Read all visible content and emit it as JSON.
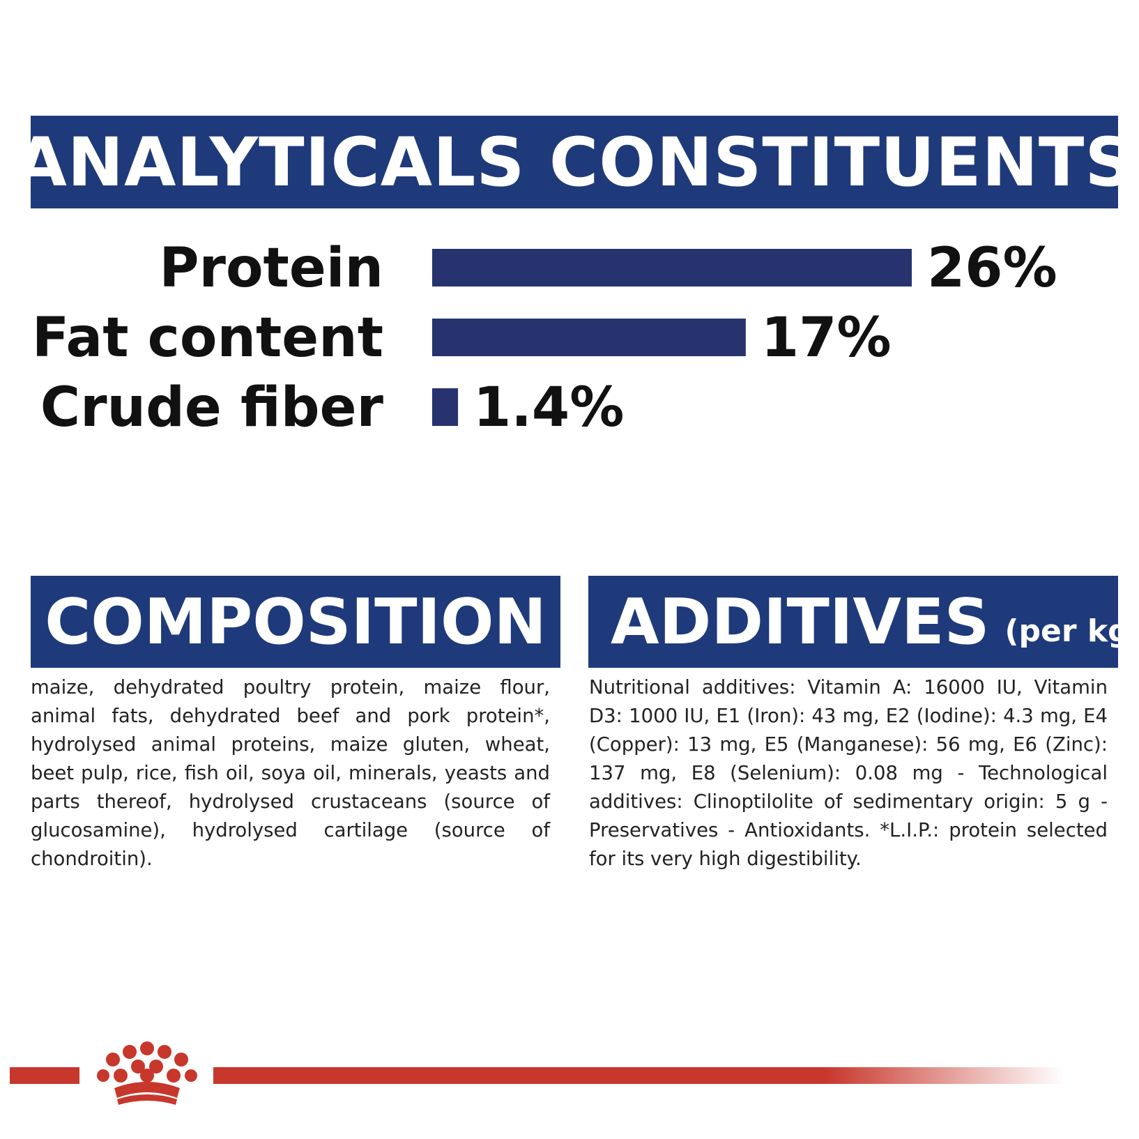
{
  "headers": {
    "analytical": "ANALYTICALS CONSTITUENTS",
    "composition": "COMPOSITION",
    "additives": "ADDITIVES",
    "additives_suffix": "(per kg)"
  },
  "chart_data": {
    "type": "bar",
    "orientation": "horizontal",
    "categories": [
      "Protein",
      "Fat content",
      "Crude fiber"
    ],
    "values": [
      26,
      17,
      1.4
    ],
    "value_labels": [
      "26%",
      "17%",
      "1.4%"
    ],
    "unit": "%",
    "xlim": [
      0,
      26
    ],
    "grid": false,
    "bar_color": "#26336e"
  },
  "composition": {
    "text": "maize, dehydrated poultry protein, maize flour, animal fats, dehydrated beef and pork protein*, hydrolysed animal proteins, maize gluten, wheat, beet pulp, rice, fish oil, soya oil, minerals, yeasts and parts thereof, hydrolysed crustaceans (source of glucosamine), hydrolysed cartilage (source of chondroitin)."
  },
  "additives": {
    "text": "Nutritional additives: Vitamin A: 16000 IU, Vitamin D3: 1000 IU, E1 (Iron): 43 mg, E2 (Iodine): 4.3 mg, E4 (Copper): 13 mg, E5 (Manganese): 56 mg, E6 (Zinc): 137 mg, E8 (Selenium): 0.08 mg - Technological additives: Clinoptilolite of sedimentary origin: 5 g - Preservatives - Antioxidants. *L.I.P.: protein selected for its very high digestibility."
  },
  "colors": {
    "banner": "#1f3a7a",
    "bar": "#26336e",
    "brand_red": "#c8372c"
  },
  "footer": {
    "logo_icon": "crown-logo-icon"
  }
}
